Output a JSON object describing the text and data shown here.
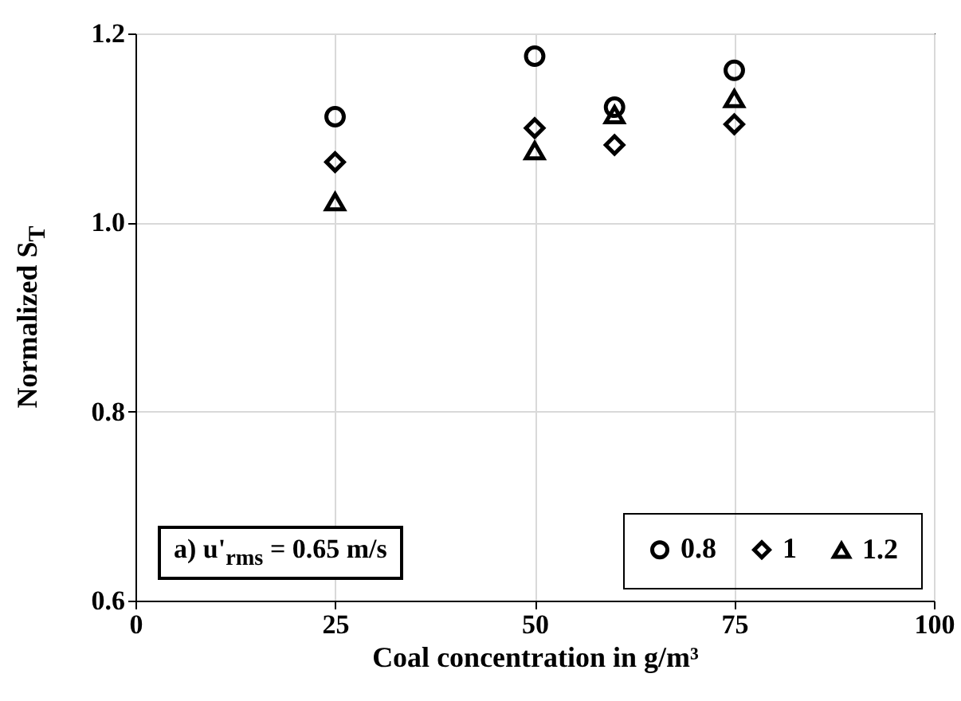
{
  "chart_data": {
    "type": "scatter",
    "xlabel": "Coal concentration in g/m³",
    "ylabel": "Normalized S$_{T}$",
    "x": [
      25,
      50,
      60,
      75
    ],
    "series": [
      {
        "name": "0.8",
        "color": "#000000",
        "marker": "circle",
        "values": [
          1.112,
          1.176,
          1.122,
          1.161
        ]
      },
      {
        "name": "1",
        "color": "#000000",
        "marker": "diamond",
        "values": [
          1.064,
          1.1,
          1.082,
          1.104
        ]
      },
      {
        "name": "1.2",
        "color": "#000000",
        "marker": "triangle",
        "values": [
          1.022,
          1.076,
          1.114,
          1.131
        ]
      }
    ],
    "xlim": [
      0,
      100
    ],
    "xticks": [
      0,
      25,
      50,
      75,
      100
    ],
    "ylim": [
      0.6,
      1.2
    ],
    "yticks": [
      0.6,
      0.8,
      {
        "value": 1,
        "label": "1.0"
      },
      1.2
    ],
    "grid": true,
    "legend": "bottom right",
    "annotations": [
      "a) u'$_{rms}$ = 0.65 m/s"
    ]
  }
}
